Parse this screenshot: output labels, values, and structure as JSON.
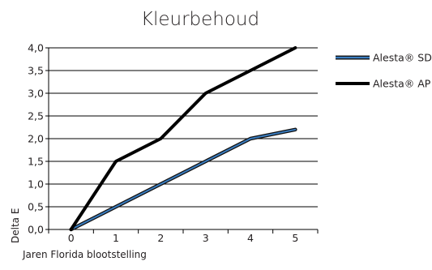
{
  "chart_data": {
    "type": "line",
    "title": "Kleurbehoud",
    "xlabel": "Jaren Florida blootstelling",
    "ylabel": "Delta E",
    "x": [
      0,
      1,
      2,
      3,
      4,
      5
    ],
    "x_tick_labels": [
      "0",
      "1",
      "2",
      "3",
      "4",
      "5"
    ],
    "y_tick_labels": [
      "0,0",
      "0,5",
      "1,0",
      "1,5",
      "2,0",
      "2,5",
      "3,0",
      "3,5",
      "4,0"
    ],
    "ylim": [
      0,
      4
    ],
    "xlim": [
      -0.5,
      5.5
    ],
    "grid": "horizontal",
    "legend_position": "right",
    "series": [
      {
        "name": "Alesta® SD",
        "values": [
          0,
          0.5,
          1.0,
          1.5,
          2.0,
          2.2
        ],
        "color": "#3a7dc0",
        "outline_color": "#111111",
        "style": "outlined-blue"
      },
      {
        "name": "Alesta® AP",
        "values": [
          0,
          1.5,
          2.0,
          3.0,
          3.5,
          4.0
        ],
        "color": "#000000",
        "style": "thick-black"
      }
    ]
  }
}
